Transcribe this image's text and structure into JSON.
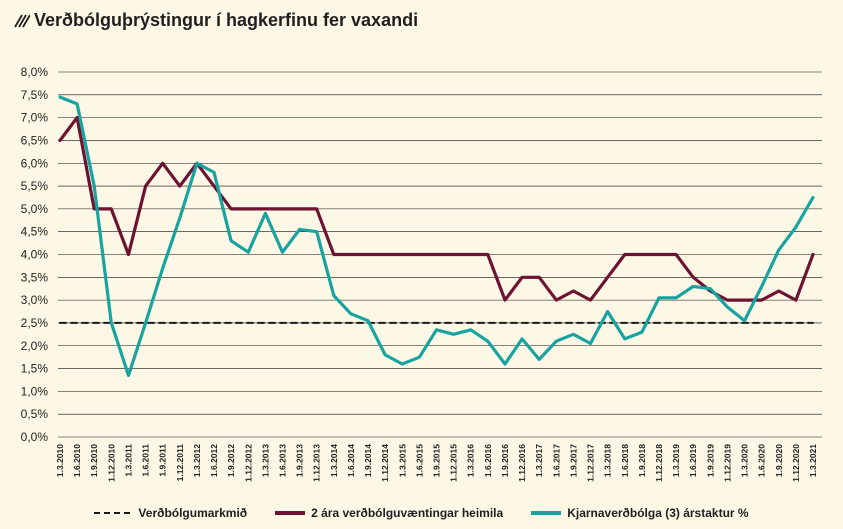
{
  "title": "Verðbólguþrýstingur í hagkerfinu fer vaxandi",
  "colors": {
    "expectations": "#6e1231",
    "core": "#17a3a0",
    "target": "#1a1a1a",
    "grid": "#111111",
    "background": "#fdf7e6"
  },
  "chart_data": {
    "type": "line",
    "ylim": [
      0,
      8
    ],
    "yticks": [
      "0,0%",
      "0,5%",
      "1,0%",
      "1,5%",
      "2,0%",
      "2,5%",
      "3,0%",
      "3,5%",
      "4,0%",
      "4,5%",
      "5,0%",
      "5,5%",
      "6,0%",
      "6,5%",
      "7,0%",
      "7,5%",
      "8,0%"
    ],
    "grid": true,
    "legend_position": "bottom",
    "categories": [
      "1.3.2010",
      "1.6.2010",
      "1.9.2010",
      "1.12.2010",
      "1.3.2011",
      "1.6.2011",
      "1.9.2011",
      "1.12.2011",
      "1.3.2012",
      "1.6.2012",
      "1.9.2012",
      "1.12.2012",
      "1.3.2013",
      "1.6.2013",
      "1.9.2013",
      "1.12.2013",
      "1.3.2014",
      "1.6.2014",
      "1.9.2014",
      "1.12.2014",
      "1.3.2015",
      "1.6.2015",
      "1.9.2015",
      "1.12.2015",
      "1.3.2016",
      "1.6.2016",
      "1.9.2016",
      "1.12.2016",
      "1.3.2017",
      "1.6.2017",
      "1.9.2017",
      "1.12.2017",
      "1.3.2018",
      "1.6.2018",
      "1.9.2018",
      "1.12.2018",
      "1.3.2019",
      "1.6.2019",
      "1.9.2019",
      "1.12.2019",
      "1.3.2020",
      "1.6.2020",
      "1.9.2020",
      "1.12.2020",
      "1.3.2021"
    ],
    "series": [
      {
        "name": "Verðbólgumarkmið",
        "style": "dashed",
        "values": [
          2.5,
          2.5,
          2.5,
          2.5,
          2.5,
          2.5,
          2.5,
          2.5,
          2.5,
          2.5,
          2.5,
          2.5,
          2.5,
          2.5,
          2.5,
          2.5,
          2.5,
          2.5,
          2.5,
          2.5,
          2.5,
          2.5,
          2.5,
          2.5,
          2.5,
          2.5,
          2.5,
          2.5,
          2.5,
          2.5,
          2.5,
          2.5,
          2.5,
          2.5,
          2.5,
          2.5,
          2.5,
          2.5,
          2.5,
          2.5,
          2.5,
          2.5,
          2.5,
          2.5,
          2.5
        ]
      },
      {
        "name": "2 ára verðbólguvæntingar heimila",
        "style": "solid",
        "values": [
          6.5,
          7.0,
          5.0,
          5.0,
          4.0,
          5.5,
          6.0,
          5.5,
          6.0,
          5.5,
          5.0,
          5.0,
          5.0,
          5.0,
          5.0,
          5.0,
          4.0,
          4.0,
          4.0,
          4.0,
          4.0,
          4.0,
          4.0,
          4.0,
          4.0,
          4.0,
          3.0,
          3.5,
          3.5,
          3.0,
          3.2,
          3.0,
          3.5,
          4.0,
          4.0,
          4.0,
          4.0,
          3.5,
          3.2,
          3.0,
          3.0,
          3.0,
          3.2,
          3.0,
          4.0
        ]
      },
      {
        "name": "Kjarnaverðbólga (3) árstaktur %",
        "style": "solid",
        "values": [
          7.45,
          7.3,
          5.5,
          2.5,
          1.35,
          2.5,
          3.7,
          4.8,
          6.0,
          5.8,
          4.3,
          4.05,
          4.9,
          4.05,
          4.55,
          4.5,
          3.1,
          2.7,
          2.55,
          1.8,
          1.6,
          1.75,
          2.35,
          2.25,
          2.35,
          2.1,
          1.6,
          2.15,
          1.7,
          2.1,
          2.25,
          2.05,
          2.75,
          2.15,
          2.3,
          3.05,
          3.05,
          3.3,
          3.25,
          2.85,
          2.55,
          3.3,
          4.1,
          4.6,
          5.25
        ]
      }
    ]
  }
}
